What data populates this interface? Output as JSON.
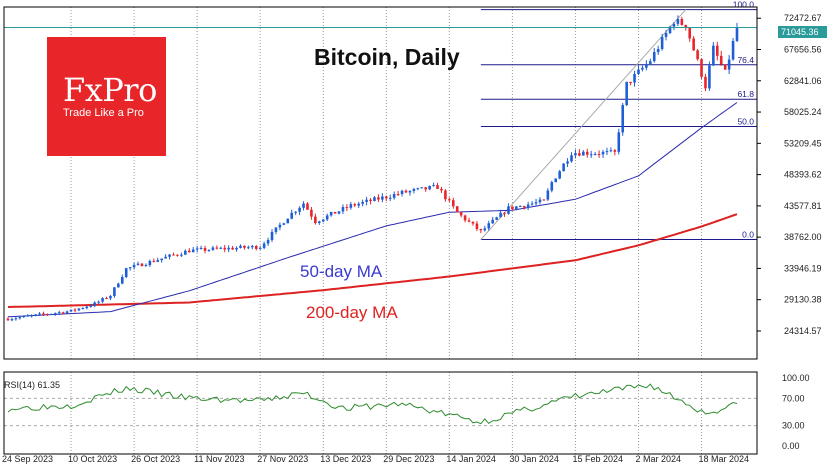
{
  "title": "Bitcoin, Daily",
  "logo": {
    "brand": "FxPro",
    "tagline": "Trade Like a Pro"
  },
  "ma_labels": {
    "ma50": "50-day MA",
    "ma200": "200-day MA"
  },
  "rsi": {
    "label": "RSI(14) 61.35",
    "levels": [
      "100.00",
      "70.00",
      "30.00",
      "0.00"
    ]
  },
  "current_price": "71045.36",
  "colors": {
    "bull": "#1f5fd6",
    "bear": "#e8262a",
    "ma50": "#2b2bb0",
    "ma200": "#dd2222",
    "rsi": "#2e8b2e",
    "logo_bg": "#e8262a",
    "price_line": "#2a9a9a"
  },
  "chart_data": {
    "type": "candlestick",
    "title": "Bitcoin, Daily",
    "x_axis_labels": [
      "24 Sep 2023",
      "10 Oct 2023",
      "26 Oct 2023",
      "11 Nov 2023",
      "27 Nov 2023",
      "13 Dec 2023",
      "29 Dec 2023",
      "14 Jan 2024",
      "30 Jan 2024",
      "15 Feb 2024",
      "2 Mar 2024",
      "18 Mar 2024"
    ],
    "y_axis_labels": [
      "72472.67",
      "67656.56",
      "62841.06",
      "58025.24",
      "53209.45",
      "48393.62",
      "43577.81",
      "38762.00",
      "33946.19",
      "29130.38",
      "24314.57"
    ],
    "ylim": [
      20000,
      74200
    ],
    "close_anchors": [
      {
        "date": "2023-09-24",
        "close": 26200
      },
      {
        "date": "2023-10-10",
        "close": 27400
      },
      {
        "date": "2023-10-16",
        "close": 28500
      },
      {
        "date": "2023-10-20",
        "close": 29800
      },
      {
        "date": "2023-10-24",
        "close": 33900
      },
      {
        "date": "2023-11-09",
        "close": 36700
      },
      {
        "date": "2023-11-27",
        "close": 37300
      },
      {
        "date": "2023-12-04",
        "close": 41900
      },
      {
        "date": "2023-12-08",
        "close": 44000
      },
      {
        "date": "2023-12-11",
        "close": 41200
      },
      {
        "date": "2023-12-20",
        "close": 43600
      },
      {
        "date": "2024-01-02",
        "close": 45600
      },
      {
        "date": "2024-01-11",
        "close": 46500
      },
      {
        "date": "2024-01-16",
        "close": 42500
      },
      {
        "date": "2024-01-22",
        "close": 39600
      },
      {
        "date": "2024-01-29",
        "close": 43200
      },
      {
        "date": "2024-02-07",
        "close": 44300
      },
      {
        "date": "2024-02-09",
        "close": 47200
      },
      {
        "date": "2024-02-14",
        "close": 51800
      },
      {
        "date": "2024-02-25",
        "close": 51700
      },
      {
        "date": "2024-02-28",
        "close": 62300
      },
      {
        "date": "2024-03-05",
        "close": 66000
      },
      {
        "date": "2024-03-11",
        "close": 72100
      },
      {
        "date": "2024-03-14",
        "close": 71400
      },
      {
        "date": "2024-03-19",
        "close": 62000
      },
      {
        "date": "2024-03-21",
        "close": 67800
      },
      {
        "date": "2024-03-24",
        "close": 64000
      },
      {
        "date": "2024-03-27",
        "close": 71045
      }
    ],
    "ma50_anchors": [
      {
        "date": "2023-09-24",
        "value": 26500
      },
      {
        "date": "2023-10-20",
        "value": 27300
      },
      {
        "date": "2023-11-09",
        "value": 30500
      },
      {
        "date": "2023-12-04",
        "value": 35600
      },
      {
        "date": "2023-12-29",
        "value": 40500
      },
      {
        "date": "2024-01-14",
        "value": 42600
      },
      {
        "date": "2024-01-30",
        "value": 42900
      },
      {
        "date": "2024-02-15",
        "value": 44600
      },
      {
        "date": "2024-03-02",
        "value": 48200
      },
      {
        "date": "2024-03-18",
        "value": 55600
      },
      {
        "date": "2024-03-27",
        "value": 59500
      }
    ],
    "ma200_anchors": [
      {
        "date": "2023-09-24",
        "value": 28000
      },
      {
        "date": "2023-11-09",
        "value": 28700
      },
      {
        "date": "2023-12-13",
        "value": 30600
      },
      {
        "date": "2024-01-14",
        "value": 32700
      },
      {
        "date": "2024-02-15",
        "value": 35200
      },
      {
        "date": "2024-03-02",
        "value": 37500
      },
      {
        "date": "2024-03-18",
        "value": 40400
      },
      {
        "date": "2024-03-27",
        "value": 42300
      }
    ],
    "fibonacci": {
      "levels": [
        {
          "label": "100.0",
          "price": 73800
        },
        {
          "label": "76.4",
          "price": 65300
        },
        {
          "label": "61.8",
          "price": 60000
        },
        {
          "label": "50.0",
          "price": 55800
        },
        {
          "label": "0.0",
          "price": 38400
        }
      ],
      "from_date": "2024-01-22",
      "to_date": "2024-03-14"
    },
    "rsi_anchors": [
      {
        "date": "2023-09-24",
        "value": 55
      },
      {
        "date": "2023-10-10",
        "value": 60
      },
      {
        "date": "2023-10-24",
        "value": 85
      },
      {
        "date": "2023-11-09",
        "value": 70
      },
      {
        "date": "2023-11-27",
        "value": 66
      },
      {
        "date": "2023-12-08",
        "value": 78
      },
      {
        "date": "2023-12-18",
        "value": 55
      },
      {
        "date": "2024-01-02",
        "value": 62
      },
      {
        "date": "2024-01-22",
        "value": 35
      },
      {
        "date": "2024-02-14",
        "value": 72
      },
      {
        "date": "2024-03-05",
        "value": 90
      },
      {
        "date": "2024-03-19",
        "value": 48
      },
      {
        "date": "2024-03-27",
        "value": 61
      }
    ]
  }
}
